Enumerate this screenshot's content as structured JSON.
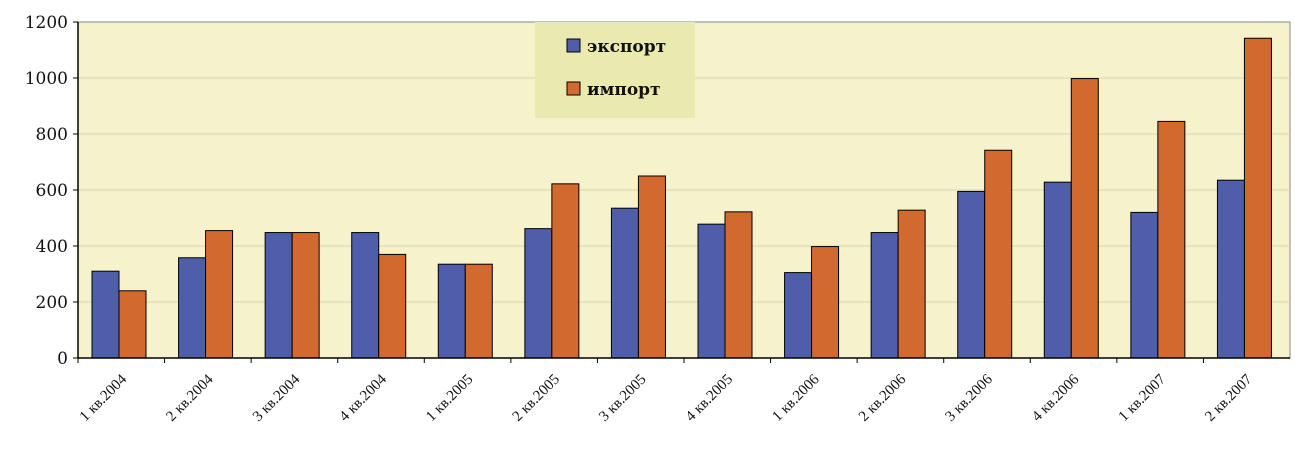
{
  "chart_data": {
    "type": "bar",
    "categories": [
      "1 кв.2004",
      "2 кв.2004",
      "3 кв.2004",
      "4 кв.2004",
      "1 кв.2005",
      "2 кв.2005",
      "3 кв.2005",
      "4 кв.2005",
      "1 кв.2006",
      "2 кв.2006",
      "3 кв.2006",
      "4 кв.2006",
      "1 кв.2007",
      "2 кв.2007"
    ],
    "series": [
      {
        "name": "экспорт",
        "color": "#4f5ea8",
        "values": [
          310,
          358,
          448,
          448,
          335,
          462,
          535,
          478,
          305,
          448,
          595,
          628,
          520,
          635
        ]
      },
      {
        "name": "импорт",
        "color": "#d2692f",
        "values": [
          240,
          455,
          448,
          370,
          335,
          622,
          650,
          522,
          398,
          528,
          742,
          998,
          845,
          1142
        ]
      }
    ],
    "yticks": [
      "0",
      "200",
      "400",
      "600",
      "800",
      "1000",
      "1200"
    ],
    "ylim": [
      0,
      1200
    ],
    "grid": true,
    "legend_position": "top-center",
    "plot_background": "#f6f3cc",
    "legend_background": "#eaeab0"
  }
}
